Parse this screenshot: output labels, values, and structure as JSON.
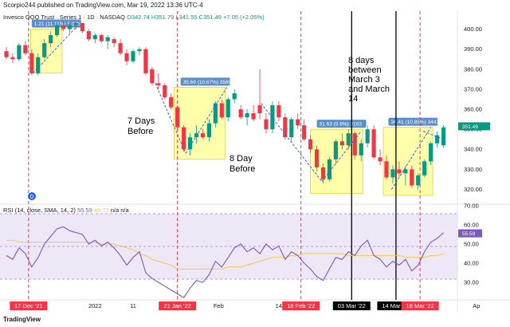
{
  "header": "Scorpio244 published on TradingView.com, Mar 19, 2022 13:36 UTC-4",
  "legend": {
    "symbol": "Invesco QQQ Trust · Series 1 · 1D · NASDAQ",
    "values": "O342.74  H351.79  L341.55  C351.49  +7.05 (+2.05%)"
  },
  "rsi_legend": {
    "label": "RSI (14, close, SMA, 14, 2)",
    "rsi_value": "55.59",
    "ma_value": "48.73",
    "na": "n/a  n/a"
  },
  "footer": "TradingView",
  "badge_text": "D",
  "annotations": {
    "seven_days": [
      "7 Days",
      "Before"
    ],
    "eight_day": [
      "8 Day",
      "Before"
    ],
    "eight_days_between": [
      "8 days",
      "between",
      "March 3",
      "and March",
      "14"
    ]
  },
  "colors": {
    "up": "#089981",
    "down": "#f23645",
    "rsi": "#7e57c2",
    "rsi_ma": "#f2c94c",
    "box": "#ffff66",
    "box_label": "#5b8dc9"
  },
  "chart_data": [
    {
      "type": "candlestick",
      "ylim": [
        315,
        405
      ],
      "yticks": [
        320,
        330,
        340,
        350,
        360,
        370,
        380,
        390,
        400
      ],
      "x_labels": [
        "2022",
        "11",
        "Feb",
        "14",
        "Ap"
      ],
      "x_highlighted_labels": [
        "17 Dec '21",
        "21 Jan '22",
        "18 Feb '22",
        "03 Mar '22",
        "14 Mar '22",
        "18 Mar '22"
      ],
      "price_boxes": [
        {
          "label": "1.21 (11.11%) 5,07b"
        },
        {
          "label": "35.69 (10.67%) 3569"
        },
        {
          "label": "31.63 (9.9%) 3163"
        },
        {
          "label": "34.41 (10.85%) 3441"
        }
      ],
      "candles": [
        [
          389,
          391,
          385,
          386
        ],
        [
          386,
          388,
          383,
          385
        ],
        [
          385,
          393,
          384,
          392
        ],
        [
          392,
          394,
          387,
          388
        ],
        [
          388,
          390,
          377,
          378
        ],
        [
          378,
          388,
          377,
          386
        ],
        [
          386,
          395,
          385,
          393
        ],
        [
          393,
          399,
          391,
          397
        ],
        [
          397,
          403,
          396,
          402
        ],
        [
          402,
          404,
          399,
          400
        ],
        [
          400,
          403,
          398,
          402
        ],
        [
          402,
          404,
          400,
          403
        ],
        [
          403,
          403,
          398,
          399
        ],
        [
          399,
          400,
          394,
          395
        ],
        [
          395,
          398,
          393,
          397
        ],
        [
          397,
          398,
          393,
          394
        ],
        [
          394,
          397,
          390,
          396
        ],
        [
          395,
          396,
          391,
          393
        ],
        [
          393,
          395,
          387,
          388
        ],
        [
          388,
          390,
          382,
          384
        ],
        [
          384,
          390,
          383,
          389
        ],
        [
          389,
          391,
          387,
          390
        ],
        [
          390,
          391,
          377,
          378
        ],
        [
          380,
          381,
          372,
          373
        ],
        [
          373,
          378,
          370,
          372
        ],
        [
          372,
          373,
          365,
          366
        ],
        [
          366,
          368,
          360,
          361
        ],
        [
          361,
          362,
          349,
          351
        ],
        [
          351,
          352,
          339,
          340
        ],
        [
          340,
          348,
          337,
          346
        ],
        [
          346,
          352,
          343,
          348
        ],
        [
          348,
          350,
          345,
          346
        ],
        [
          346,
          355,
          344,
          353
        ],
        [
          353,
          364,
          351,
          363
        ],
        [
          363,
          365,
          355,
          356
        ],
        [
          356,
          366,
          354,
          365
        ],
        [
          365,
          370,
          363,
          368
        ],
        [
          360,
          362,
          355,
          356
        ],
        [
          356,
          360,
          352,
          358
        ],
        [
          358,
          362,
          354,
          355
        ],
        [
          362,
          380,
          355,
          358
        ],
        [
          355,
          358,
          348,
          350
        ],
        [
          350,
          364,
          348,
          362
        ],
        [
          362,
          364,
          354,
          356
        ],
        [
          356,
          358,
          345,
          346
        ],
        [
          346,
          356,
          344,
          355
        ],
        [
          355,
          358,
          350,
          352
        ],
        [
          352,
          355,
          344,
          345
        ],
        [
          345,
          347,
          338,
          340
        ],
        [
          340,
          342,
          329,
          331
        ],
        [
          331,
          333,
          323,
          325
        ],
        [
          325,
          336,
          324,
          335
        ],
        [
          335,
          345,
          333,
          344
        ],
        [
          344,
          348,
          340,
          342
        ],
        [
          342,
          350,
          340,
          348
        ],
        [
          348,
          349,
          335,
          337
        ],
        [
          337,
          345,
          334,
          343
        ],
        [
          343,
          352,
          341,
          350
        ],
        [
          350,
          352,
          335,
          336
        ],
        [
          336,
          340,
          332,
          334
        ],
        [
          334,
          337,
          325,
          326
        ],
        [
          326,
          332,
          323,
          330
        ],
        [
          330,
          334,
          326,
          328
        ],
        [
          328,
          332,
          322,
          330
        ],
        [
          330,
          332,
          321,
          322
        ],
        [
          322,
          328,
          320,
          327
        ],
        [
          327,
          335,
          326,
          334
        ],
        [
          334,
          344,
          332,
          343
        ],
        [
          343,
          349,
          341,
          347
        ],
        [
          342,
          352,
          341,
          351
        ]
      ]
    },
    {
      "type": "line",
      "ylim": [
        20,
        70
      ],
      "yticks": [
        30,
        40,
        50,
        60,
        70
      ],
      "series": [
        {
          "values": [
            44,
            42,
            48,
            45,
            38,
            43,
            50,
            54,
            58,
            59,
            57,
            56,
            55,
            50,
            52,
            49,
            51,
            48,
            44,
            39,
            43,
            46,
            35,
            32,
            30,
            28,
            26,
            24,
            22,
            27,
            31,
            30,
            34,
            41,
            38,
            43,
            48,
            50,
            46,
            48,
            45,
            50,
            47,
            49,
            42,
            46,
            44,
            40,
            37,
            33,
            31,
            37,
            43,
            42,
            46,
            44,
            49,
            52,
            44,
            42,
            38,
            41,
            39,
            42,
            36,
            39,
            46,
            51,
            53,
            56
          ]
        },
        {
          "values": [
            52,
            52,
            51,
            51,
            51,
            51,
            51,
            51,
            51,
            51,
            51,
            51,
            51,
            51,
            51,
            50,
            50,
            50,
            49,
            48,
            47,
            45,
            44,
            42,
            41,
            40,
            39,
            37,
            37,
            37,
            37,
            37,
            37,
            37,
            37,
            38,
            38,
            38,
            39,
            40,
            41,
            42,
            43,
            43,
            43,
            44,
            44,
            45,
            45,
            45,
            45,
            45,
            45,
            45,
            44,
            44,
            44,
            44,
            44,
            44,
            44,
            44,
            44,
            43,
            43,
            43,
            43,
            44,
            44,
            45
          ]
        }
      ]
    }
  ]
}
